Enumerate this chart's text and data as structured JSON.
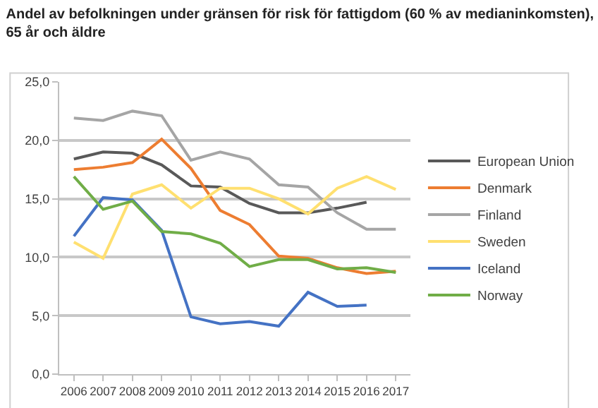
{
  "chart_data": {
    "type": "line",
    "title": "Andel av befolkningen under gränsen för risk för fattigdom (60 % av medianinkomsten),\n65 år och äldre",
    "categories": [
      "2006",
      "2007",
      "2008",
      "2009",
      "2010",
      "2011",
      "2012",
      "2013",
      "2014",
      "2015",
      "2016",
      "2017"
    ],
    "series": [
      {
        "name": "European Union",
        "color": "#595959",
        "values": [
          18.4,
          19.0,
          18.9,
          17.9,
          16.1,
          16.0,
          14.6,
          13.8,
          13.8,
          14.2,
          14.7,
          null
        ]
      },
      {
        "name": "Denmark",
        "color": "#ed7d31",
        "values": [
          17.5,
          17.7,
          18.1,
          20.1,
          17.6,
          14.0,
          12.8,
          10.1,
          9.9,
          9.1,
          8.6,
          8.8
        ]
      },
      {
        "name": "Finland",
        "color": "#a5a5a5",
        "values": [
          21.9,
          21.7,
          22.5,
          22.1,
          18.3,
          19.0,
          18.4,
          16.2,
          16.0,
          13.8,
          12.4,
          12.4
        ]
      },
      {
        "name": "Sweden",
        "color": "#ffe070",
        "values": [
          11.3,
          9.9,
          15.4,
          16.2,
          14.2,
          15.9,
          15.9,
          15.0,
          13.7,
          15.9,
          16.9,
          15.8
        ]
      },
      {
        "name": "Iceland",
        "color": "#4472c4",
        "values": [
          11.8,
          15.1,
          14.9,
          12.3,
          4.9,
          4.3,
          4.5,
          4.1,
          7.0,
          5.8,
          5.9,
          null
        ]
      },
      {
        "name": "Norway",
        "color": "#70ad47",
        "values": [
          16.9,
          14.1,
          14.8,
          12.2,
          12.0,
          11.2,
          9.2,
          9.8,
          9.8,
          9.0,
          9.1,
          8.7
        ]
      }
    ],
    "ylim": [
      0,
      25
    ],
    "yticks": [
      {
        "value": 0,
        "label": "0,0"
      },
      {
        "value": 5,
        "label": "5,0"
      },
      {
        "value": 10,
        "label": "10,0"
      },
      {
        "value": 15,
        "label": "15,0"
      },
      {
        "value": 20,
        "label": "20,0"
      },
      {
        "value": 25,
        "label": "25,0"
      }
    ],
    "grid": "y",
    "legend": "right",
    "marker": "none",
    "line_style": "solid"
  }
}
